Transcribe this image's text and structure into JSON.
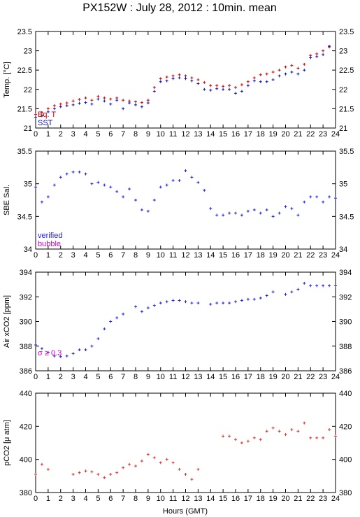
{
  "title": "PX152W : July 28, 2012 : 10min. mean",
  "x_axis": {
    "label": "Hours (GMT)",
    "range": [
      0,
      24
    ],
    "ticks": [
      "0",
      "1",
      "2",
      "3",
      "4",
      "5",
      "6",
      "7",
      "8",
      "9",
      "10",
      "11",
      "12",
      "13",
      "14",
      "15",
      "16",
      "17",
      "18",
      "19",
      "20",
      "21",
      "22",
      "23",
      "24"
    ]
  },
  "colors": {
    "eq_t": "#d00000",
    "sst": "#1010c0",
    "verified": "#2020e0",
    "bubble": "#cc00cc",
    "sigma": "#cc00cc",
    "pco2": "#e03030"
  },
  "chart_data": [
    {
      "type": "scatter",
      "ylabel": "Temp. [°C]",
      "ylim": [
        21,
        23.5
      ],
      "yticks": [
        "21",
        "21.5",
        "22",
        "22.5",
        "23",
        "23.5"
      ],
      "legend": [
        "Eq. T",
        "SST"
      ],
      "series": [
        {
          "name": "Eq. T",
          "color": "#d00000",
          "x": [
            0.0,
            0.5,
            1.0,
            1.5,
            2.0,
            2.5,
            3.0,
            3.5,
            4.0,
            4.5,
            5.0,
            5.5,
            6.0,
            6.5,
            7.0,
            7.5,
            8.0,
            8.5,
            9.0,
            9.5,
            10.0,
            10.5,
            11.0,
            11.5,
            12.0,
            12.5,
            13.0,
            13.5,
            14.0,
            14.5,
            15.0,
            15.5,
            16.0,
            16.5,
            17.0,
            17.5,
            18.0,
            18.5,
            19.0,
            19.5,
            20.0,
            20.5,
            21.0,
            21.5,
            22.0,
            22.5,
            23.0,
            23.5
          ],
          "y": [
            21.35,
            21.4,
            21.5,
            21.58,
            21.62,
            21.65,
            21.7,
            21.74,
            21.78,
            21.72,
            21.82,
            21.78,
            21.75,
            21.78,
            21.72,
            21.7,
            21.68,
            21.66,
            21.72,
            22.05,
            22.28,
            22.32,
            22.35,
            22.38,
            22.35,
            22.3,
            22.25,
            22.18,
            22.1,
            22.1,
            22.08,
            22.1,
            22.05,
            22.12,
            22.2,
            22.3,
            22.38,
            22.4,
            22.45,
            22.5,
            22.58,
            22.62,
            22.55,
            22.65,
            22.88,
            22.92,
            23.0,
            23.1
          ]
        },
        {
          "name": "SST",
          "color": "#1010c0",
          "x": [
            0.0,
            0.5,
            1.0,
            1.5,
            2.0,
            2.5,
            3.0,
            3.5,
            4.0,
            4.5,
            5.0,
            5.5,
            6.0,
            6.5,
            7.0,
            7.5,
            8.0,
            8.5,
            9.0,
            9.5,
            10.0,
            10.5,
            11.0,
            11.5,
            12.0,
            12.5,
            13.0,
            13.5,
            14.0,
            14.5,
            15.0,
            15.5,
            16.0,
            16.5,
            17.0,
            17.5,
            18.0,
            18.5,
            19.0,
            19.5,
            20.0,
            20.5,
            21.0,
            21.5,
            22.0,
            22.5,
            23.0,
            23.5
          ],
          "y": [
            21.28,
            21.32,
            21.42,
            21.5,
            21.55,
            21.58,
            21.6,
            21.64,
            21.66,
            21.62,
            21.75,
            21.7,
            21.62,
            21.72,
            21.5,
            21.65,
            21.6,
            21.55,
            21.65,
            21.95,
            22.2,
            22.22,
            22.28,
            22.3,
            22.28,
            22.22,
            22.15,
            22.0,
            21.98,
            22.02,
            22.0,
            22.0,
            21.9,
            21.95,
            22.1,
            22.22,
            22.2,
            22.2,
            22.25,
            22.35,
            22.4,
            22.45,
            22.4,
            22.5,
            22.82,
            22.85,
            22.9,
            23.12
          ]
        }
      ]
    },
    {
      "type": "scatter",
      "ylabel": "SBE Sal.",
      "ylim": [
        34,
        35.5
      ],
      "yticks": [
        "34",
        "34.5",
        "35",
        "35.5"
      ],
      "legend": [
        "verified",
        "bubble"
      ],
      "series": [
        {
          "name": "verified",
          "color": "#2020e0",
          "x": [
            0.0,
            0.5,
            1.0,
            1.5,
            2.0,
            2.5,
            3.0,
            3.5,
            4.0,
            4.5,
            5.0,
            5.5,
            6.0,
            6.5,
            7.0,
            7.5,
            8.0,
            8.5,
            9.0,
            9.5,
            10.0,
            10.5,
            11.0,
            11.5,
            12.0,
            12.5,
            13.0,
            13.5,
            14.0,
            14.5,
            15.0,
            15.5,
            16.0,
            16.5,
            17.0,
            17.5,
            18.0,
            18.5,
            19.0,
            19.5,
            20.0,
            20.5,
            21.0,
            21.5,
            22.0,
            22.5,
            23.0,
            23.5,
            24.0
          ],
          "y": [
            34.95,
            34.72,
            34.8,
            34.98,
            35.1,
            35.15,
            35.18,
            35.18,
            35.15,
            35.0,
            35.02,
            34.98,
            34.95,
            34.88,
            34.8,
            34.92,
            34.75,
            34.6,
            34.58,
            34.75,
            34.95,
            34.98,
            35.05,
            35.05,
            35.2,
            35.1,
            35.02,
            34.9,
            34.62,
            34.52,
            34.52,
            34.55,
            34.55,
            34.52,
            34.58,
            34.6,
            34.55,
            34.6,
            34.5,
            34.55,
            34.65,
            34.62,
            34.52,
            34.72,
            34.8,
            34.8,
            34.72,
            34.8,
            34.78
          ]
        }
      ]
    },
    {
      "type": "scatter",
      "ylabel": "Air xCO2 [ppm]",
      "ylim": [
        386,
        394
      ],
      "yticks": [
        "386",
        "388",
        "390",
        "392",
        "394"
      ],
      "annotation": "σ ≥ 0.3",
      "series": [
        {
          "name": "",
          "color": "#2020e0",
          "x": [
            0.0,
            0.5,
            1.0,
            1.5,
            2.0,
            2.5,
            3.0,
            3.5,
            4.0,
            4.5,
            5.0,
            5.5,
            6.0,
            6.5,
            7.0,
            8.0,
            8.5,
            9.0,
            9.5,
            10.0,
            10.5,
            11.0,
            11.5,
            12.0,
            12.5,
            13.0,
            14.0,
            14.5,
            15.0,
            15.5,
            16.0,
            16.5,
            17.0,
            17.5,
            18.0,
            18.5,
            19.0,
            20.0,
            20.5,
            21.0,
            21.5,
            22.0,
            22.5,
            23.0,
            23.5,
            24.0
          ],
          "y": [
            388.1,
            387.8,
            387.5,
            387.2,
            387.15,
            387.2,
            387.4,
            387.7,
            387.7,
            388.0,
            388.6,
            389.4,
            390.0,
            390.3,
            390.6,
            391.2,
            390.8,
            391.1,
            391.3,
            391.5,
            391.6,
            391.7,
            391.7,
            391.6,
            391.5,
            391.5,
            391.4,
            391.5,
            391.5,
            391.5,
            391.6,
            391.7,
            391.8,
            391.8,
            391.9,
            392.1,
            392.4,
            392.2,
            392.4,
            392.6,
            393.1,
            392.9,
            392.9,
            392.9,
            392.9,
            392.9
          ]
        }
      ]
    },
    {
      "type": "scatter",
      "ylabel": "pCO2 [μ atm]",
      "ylim": [
        380,
        440
      ],
      "yticks": [
        "380",
        "400",
        "420",
        "440"
      ],
      "series": [
        {
          "name": "",
          "color": "#e03030",
          "x": [
            0.0,
            0.5,
            1.0,
            3.0,
            3.5,
            4.0,
            4.5,
            5.0,
            5.5,
            6.0,
            6.5,
            7.0,
            7.5,
            8.0,
            8.5,
            9.0,
            9.5,
            10.0,
            10.5,
            11.0,
            11.5,
            12.0,
            12.5,
            13.0,
            15.0,
            15.5,
            16.0,
            16.5,
            17.0,
            17.5,
            18.0,
            18.5,
            19.0,
            19.5,
            20.0,
            20.5,
            21.0,
            21.5,
            22.0,
            22.5,
            23.0,
            23.5,
            24.0
          ],
          "y": [
            391.0,
            397.0,
            394.0,
            391.0,
            392.0,
            393.0,
            392.5,
            391.0,
            389.0,
            391.0,
            392.0,
            395.0,
            397.0,
            396.0,
            399.0,
            403.0,
            401.0,
            398.0,
            400.0,
            398.0,
            394.0,
            391.0,
            388.0,
            394.0,
            414.0,
            414.0,
            412.0,
            410.0,
            411.0,
            413.0,
            412.0,
            417.0,
            419.0,
            417.0,
            415.0,
            418.0,
            417.0,
            422.0,
            413.0,
            413.0,
            413.0,
            418.0,
            414.0
          ]
        }
      ]
    }
  ]
}
